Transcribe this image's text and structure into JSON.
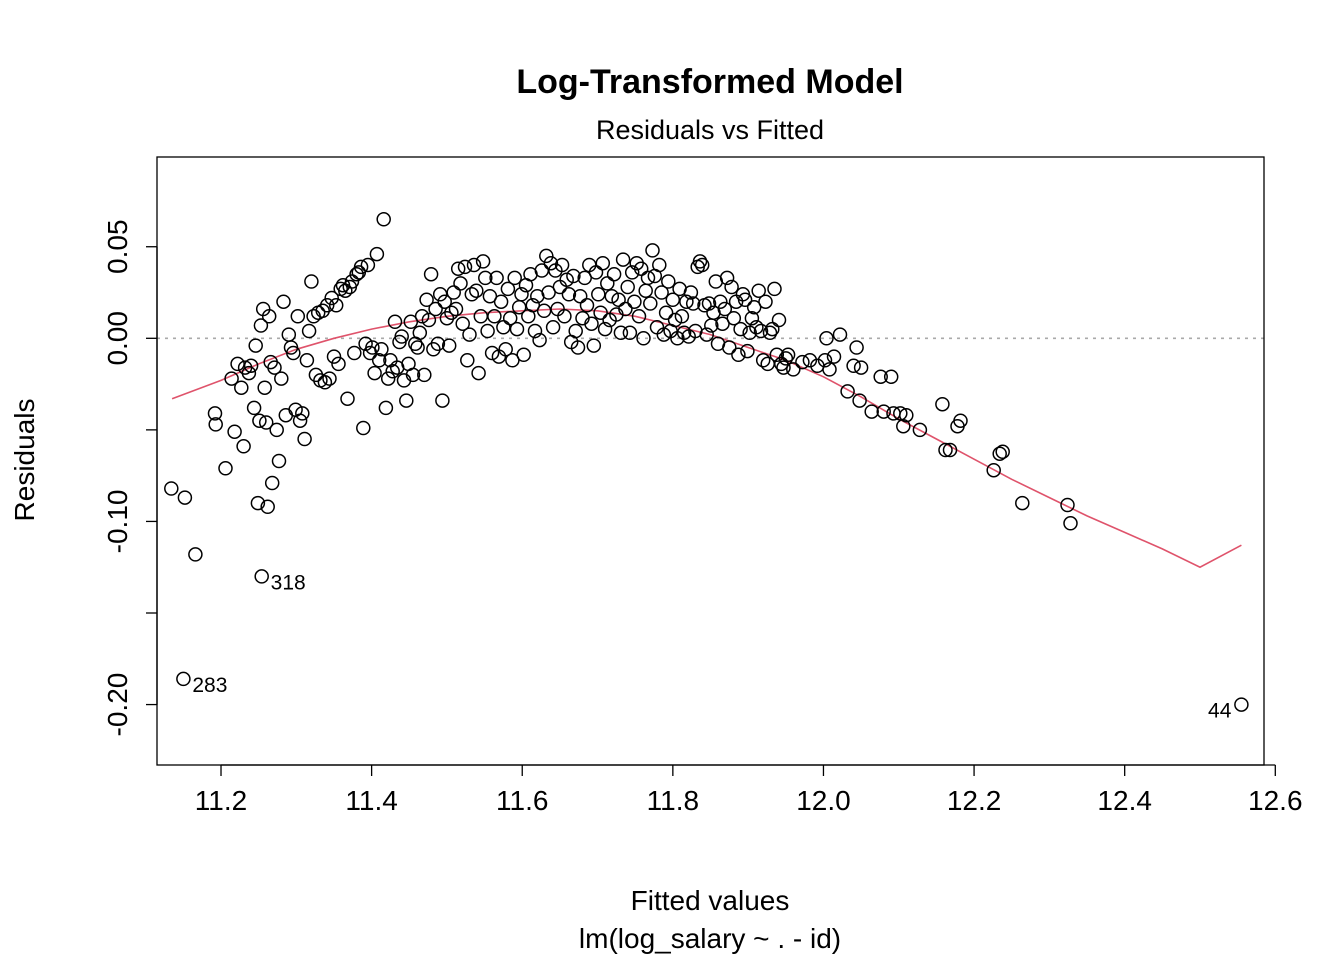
{
  "chart_data": {
    "type": "scatter",
    "title": "Log-Transformed Model",
    "subtitle": "Residuals vs Fitted",
    "xlabel": "Fitted values",
    "xlabel_sub": "lm(log_salary ~ . - id)",
    "ylabel": "Residuals",
    "xlim": [
      11.115,
      12.585
    ],
    "ylim": [
      -0.233,
      0.099
    ],
    "x_ticks": [
      11.2,
      11.4,
      11.6,
      11.8,
      12.0,
      12.2,
      12.4,
      12.6
    ],
    "x_tick_labels": [
      "11.2",
      "11.4",
      "11.6",
      "11.8",
      "12.0",
      "12.2",
      "12.4",
      "12.6"
    ],
    "y_ticks": [
      -0.2,
      -0.15,
      -0.1,
      -0.05,
      0.0,
      0.05
    ],
    "y_tick_labels": [
      "-0.20",
      "",
      "-0.10",
      "",
      "0.00",
      "0.05"
    ],
    "reference_line": {
      "y": 0.0,
      "style": "dotted",
      "color": "#aaaaaa"
    },
    "point_color": "#000000",
    "smooth_color": "#df536b",
    "labeled_points": [
      {
        "label": "318",
        "x": 11.254,
        "y": -0.13
      },
      {
        "label": "283",
        "x": 11.15,
        "y": -0.186
      },
      {
        "label": "44",
        "x": 12.555,
        "y": -0.2
      }
    ],
    "points": [
      [
        11.134,
        -0.082
      ],
      [
        11.152,
        -0.087
      ],
      [
        11.166,
        -0.118
      ],
      [
        11.192,
        -0.041
      ],
      [
        11.193,
        -0.047
      ],
      [
        11.206,
        -0.071
      ],
      [
        11.214,
        -0.022
      ],
      [
        11.218,
        -0.051
      ],
      [
        11.222,
        -0.014
      ],
      [
        11.227,
        -0.027
      ],
      [
        11.23,
        -0.059
      ],
      [
        11.232,
        -0.016
      ],
      [
        11.237,
        -0.019
      ],
      [
        11.24,
        -0.015
      ],
      [
        11.244,
        -0.038
      ],
      [
        11.246,
        -0.004
      ],
      [
        11.249,
        -0.09
      ],
      [
        11.251,
        -0.045
      ],
      [
        11.253,
        0.007
      ],
      [
        11.256,
        0.016
      ],
      [
        11.258,
        -0.027
      ],
      [
        11.26,
        -0.046
      ],
      [
        11.262,
        -0.092
      ],
      [
        11.264,
        0.012
      ],
      [
        11.266,
        -0.013
      ],
      [
        11.268,
        -0.079
      ],
      [
        11.271,
        -0.016
      ],
      [
        11.274,
        -0.05
      ],
      [
        11.277,
        -0.067
      ],
      [
        11.28,
        -0.022
      ],
      [
        11.283,
        0.02
      ],
      [
        11.286,
        -0.042
      ],
      [
        11.29,
        0.002
      ],
      [
        11.293,
        -0.005
      ],
      [
        11.296,
        -0.008
      ],
      [
        11.299,
        -0.039
      ],
      [
        11.302,
        0.012
      ],
      [
        11.305,
        -0.045
      ],
      [
        11.308,
        -0.041
      ],
      [
        11.311,
        -0.055
      ],
      [
        11.314,
        -0.012
      ],
      [
        11.317,
        0.004
      ],
      [
        11.32,
        0.031
      ],
      [
        11.323,
        0.012
      ],
      [
        11.326,
        -0.02
      ],
      [
        11.329,
        0.014
      ],
      [
        11.332,
        -0.023
      ],
      [
        11.335,
        0.015
      ],
      [
        11.338,
        -0.024
      ],
      [
        11.341,
        0.018
      ],
      [
        11.344,
        -0.022
      ],
      [
        11.347,
        0.022
      ],
      [
        11.35,
        -0.01
      ],
      [
        11.353,
        0.018
      ],
      [
        11.356,
        -0.014
      ],
      [
        11.359,
        0.027
      ],
      [
        11.362,
        0.029
      ],
      [
        11.365,
        0.026
      ],
      [
        11.368,
        -0.033
      ],
      [
        11.371,
        0.028
      ],
      [
        11.374,
        0.031
      ],
      [
        11.377,
        -0.008
      ],
      [
        11.38,
        0.035
      ],
      [
        11.383,
        0.036
      ],
      [
        11.386,
        0.039
      ],
      [
        11.389,
        -0.049
      ],
      [
        11.392,
        -0.003
      ],
      [
        11.395,
        0.04
      ],
      [
        11.398,
        -0.008
      ],
      [
        11.401,
        -0.005
      ],
      [
        11.404,
        -0.019
      ],
      [
        11.407,
        0.046
      ],
      [
        11.41,
        -0.012
      ],
      [
        11.413,
        -0.006
      ],
      [
        11.416,
        0.065
      ],
      [
        11.419,
        -0.038
      ],
      [
        11.422,
        -0.022
      ],
      [
        11.425,
        -0.012
      ],
      [
        11.428,
        -0.018
      ],
      [
        11.431,
        0.009
      ],
      [
        11.434,
        -0.016
      ],
      [
        11.437,
        -0.002
      ],
      [
        11.44,
        0.001
      ],
      [
        11.443,
        -0.023
      ],
      [
        11.446,
        -0.034
      ],
      [
        11.449,
        -0.014
      ],
      [
        11.452,
        0.009
      ],
      [
        11.455,
        -0.02
      ],
      [
        11.458,
        -0.003
      ],
      [
        11.461,
        -0.005
      ],
      [
        11.464,
        0.003
      ],
      [
        11.467,
        0.012
      ],
      [
        11.47,
        -0.02
      ],
      [
        11.473,
        0.021
      ],
      [
        11.476,
        0.01
      ],
      [
        11.479,
        0.035
      ],
      [
        11.482,
        -0.006
      ],
      [
        11.485,
        0.016
      ],
      [
        11.488,
        -0.003
      ],
      [
        11.491,
        0.024
      ],
      [
        11.494,
        -0.034
      ],
      [
        11.497,
        0.02
      ],
      [
        11.5,
        0.011
      ],
      [
        11.503,
        -0.004
      ],
      [
        11.506,
        0.014
      ],
      [
        11.509,
        0.025
      ],
      [
        11.512,
        0.016
      ],
      [
        11.515,
        0.038
      ],
      [
        11.518,
        0.03
      ],
      [
        11.521,
        0.008
      ],
      [
        11.524,
        0.039
      ],
      [
        11.527,
        -0.012
      ],
      [
        11.53,
        0.002
      ],
      [
        11.533,
        0.024
      ],
      [
        11.536,
        0.04
      ],
      [
        11.539,
        0.026
      ],
      [
        11.542,
        -0.019
      ],
      [
        11.545,
        0.012
      ],
      [
        11.548,
        0.042
      ],
      [
        11.551,
        0.033
      ],
      [
        11.554,
        0.004
      ],
      [
        11.557,
        0.023
      ],
      [
        11.56,
        -0.008
      ],
      [
        11.563,
        0.012
      ],
      [
        11.566,
        0.033
      ],
      [
        11.569,
        -0.01
      ],
      [
        11.572,
        0.02
      ],
      [
        11.575,
        0.006
      ],
      [
        11.578,
        -0.006
      ],
      [
        11.581,
        0.027
      ],
      [
        11.584,
        0.011
      ],
      [
        11.587,
        -0.012
      ],
      [
        11.59,
        0.033
      ],
      [
        11.593,
        0.005
      ],
      [
        11.596,
        0.017
      ],
      [
        11.599,
        0.024
      ],
      [
        11.602,
        -0.009
      ],
      [
        11.605,
        0.029
      ],
      [
        11.608,
        0.012
      ],
      [
        11.611,
        0.035
      ],
      [
        11.614,
        0.018
      ],
      [
        11.617,
        0.004
      ],
      [
        11.62,
        0.023
      ],
      [
        11.623,
        -0.001
      ],
      [
        11.626,
        0.037
      ],
      [
        11.629,
        0.015
      ],
      [
        11.632,
        0.045
      ],
      [
        11.635,
        0.025
      ],
      [
        11.638,
        0.041
      ],
      [
        11.641,
        0.006
      ],
      [
        11.644,
        0.037
      ],
      [
        11.647,
        0.016
      ],
      [
        11.65,
        0.028
      ],
      [
        11.653,
        0.04
      ],
      [
        11.656,
        0.012
      ],
      [
        11.659,
        0.032
      ],
      [
        11.662,
        0.024
      ],
      [
        11.665,
        -0.002
      ],
      [
        11.668,
        0.034
      ],
      [
        11.671,
        0.004
      ],
      [
        11.674,
        -0.005
      ],
      [
        11.677,
        0.023
      ],
      [
        11.68,
        0.011
      ],
      [
        11.683,
        0.033
      ],
      [
        11.686,
        0.018
      ],
      [
        11.689,
        0.04
      ],
      [
        11.692,
        0.008
      ],
      [
        11.695,
        -0.004
      ],
      [
        11.698,
        0.036
      ],
      [
        11.701,
        0.024
      ],
      [
        11.704,
        0.014
      ],
      [
        11.707,
        0.041
      ],
      [
        11.71,
        0.005
      ],
      [
        11.713,
        0.03
      ],
      [
        11.716,
        0.01
      ],
      [
        11.719,
        0.023
      ],
      [
        11.722,
        0.035
      ],
      [
        11.725,
        0.013
      ],
      [
        11.728,
        0.021
      ],
      [
        11.731,
        0.003
      ],
      [
        11.734,
        0.043
      ],
      [
        11.737,
        0.016
      ],
      [
        11.74,
        0.028
      ],
      [
        11.743,
        0.003
      ],
      [
        11.746,
        0.036
      ],
      [
        11.749,
        0.02
      ],
      [
        11.752,
        0.041
      ],
      [
        11.755,
        0.012
      ],
      [
        11.758,
        0.038
      ],
      [
        11.761,
        0.0
      ],
      [
        11.764,
        0.026
      ],
      [
        11.767,
        0.033
      ],
      [
        11.77,
        0.019
      ],
      [
        11.773,
        0.048
      ],
      [
        11.776,
        0.034
      ],
      [
        11.779,
        0.006
      ],
      [
        11.782,
        0.04
      ],
      [
        11.785,
        0.025
      ],
      [
        11.788,
        0.002
      ],
      [
        11.791,
        0.014
      ],
      [
        11.794,
        0.031
      ],
      [
        11.797,
        0.004
      ],
      [
        11.8,
        0.021
      ],
      [
        11.803,
        0.01
      ],
      [
        11.806,
        0.0
      ],
      [
        11.809,
        0.027
      ],
      [
        11.812,
        0.012
      ],
      [
        11.815,
        0.003
      ],
      [
        11.818,
        0.02
      ],
      [
        11.821,
        0.001
      ],
      [
        11.824,
        0.025
      ],
      [
        11.827,
        0.019
      ],
      [
        11.83,
        0.004
      ],
      [
        11.833,
        0.039
      ],
      [
        11.836,
        0.042
      ],
      [
        11.839,
        0.04
      ],
      [
        11.842,
        0.018
      ],
      [
        11.845,
        0.002
      ],
      [
        11.848,
        0.019
      ],
      [
        11.851,
        0.007
      ],
      [
        11.854,
        0.014
      ],
      [
        11.857,
        0.031
      ],
      [
        11.86,
        -0.003
      ],
      [
        11.863,
        0.02
      ],
      [
        11.866,
        0.008
      ],
      [
        11.869,
        0.016
      ],
      [
        11.872,
        0.033
      ],
      [
        11.875,
        -0.005
      ],
      [
        11.878,
        0.028
      ],
      [
        11.881,
        0.011
      ],
      [
        11.884,
        0.02
      ],
      [
        11.887,
        -0.009
      ],
      [
        11.89,
        0.005
      ],
      [
        11.893,
        0.024
      ],
      [
        11.896,
        0.021
      ],
      [
        11.899,
        -0.007
      ],
      [
        11.902,
        0.003
      ],
      [
        11.905,
        0.011
      ],
      [
        11.908,
        0.017
      ],
      [
        11.911,
        0.006
      ],
      [
        11.914,
        0.026
      ],
      [
        11.917,
        0.004
      ],
      [
        11.92,
        -0.012
      ],
      [
        11.923,
        0.02
      ],
      [
        11.926,
        -0.014
      ],
      [
        11.929,
        0.003
      ],
      [
        11.932,
        0.005
      ],
      [
        11.935,
        0.027
      ],
      [
        11.938,
        -0.009
      ],
      [
        11.941,
        0.01
      ],
      [
        11.944,
        -0.014
      ],
      [
        11.947,
        -0.016
      ],
      [
        11.95,
        -0.011
      ],
      [
        11.953,
        -0.009
      ],
      [
        11.96,
        -0.017
      ],
      [
        11.972,
        -0.013
      ],
      [
        11.982,
        -0.012
      ],
      [
        11.992,
        -0.015
      ],
      [
        12.002,
        -0.012
      ],
      [
        12.004,
        0.0
      ],
      [
        12.008,
        -0.017
      ],
      [
        12.014,
        -0.01
      ],
      [
        12.022,
        0.002
      ],
      [
        12.032,
        -0.029
      ],
      [
        12.04,
        -0.015
      ],
      [
        12.044,
        -0.005
      ],
      [
        12.048,
        -0.034
      ],
      [
        12.05,
        -0.016
      ],
      [
        12.064,
        -0.04
      ],
      [
        12.076,
        -0.021
      ],
      [
        12.08,
        -0.04
      ],
      [
        12.09,
        -0.021
      ],
      [
        12.093,
        -0.041
      ],
      [
        12.102,
        -0.041
      ],
      [
        12.106,
        -0.048
      ],
      [
        12.11,
        -0.042
      ],
      [
        12.128,
        -0.05
      ],
      [
        12.158,
        -0.036
      ],
      [
        12.162,
        -0.061
      ],
      [
        12.168,
        -0.061
      ],
      [
        12.178,
        -0.048
      ],
      [
        12.182,
        -0.045
      ],
      [
        12.226,
        -0.072
      ],
      [
        12.234,
        -0.063
      ],
      [
        12.238,
        -0.062
      ],
      [
        12.264,
        -0.09
      ],
      [
        12.324,
        -0.091
      ],
      [
        12.328,
        -0.101
      ],
      [
        11.254,
        -0.13
      ],
      [
        11.15,
        -0.186
      ],
      [
        12.555,
        -0.2
      ]
    ],
    "smooth": [
      [
        11.135,
        -0.033
      ],
      [
        11.2,
        -0.023
      ],
      [
        11.25,
        -0.014
      ],
      [
        11.3,
        -0.006
      ],
      [
        11.35,
        0.0
      ],
      [
        11.4,
        0.005
      ],
      [
        11.45,
        0.009
      ],
      [
        11.5,
        0.012
      ],
      [
        11.55,
        0.014
      ],
      [
        11.6,
        0.015
      ],
      [
        11.65,
        0.016
      ],
      [
        11.7,
        0.015
      ],
      [
        11.75,
        0.012
      ],
      [
        11.8,
        0.007
      ],
      [
        11.85,
        0.002
      ],
      [
        11.9,
        -0.005
      ],
      [
        11.95,
        -0.012
      ],
      [
        12.0,
        -0.021
      ],
      [
        12.05,
        -0.032
      ],
      [
        12.1,
        -0.044
      ],
      [
        12.15,
        -0.055
      ],
      [
        12.2,
        -0.066
      ],
      [
        12.25,
        -0.077
      ],
      [
        12.3,
        -0.087
      ],
      [
        12.35,
        -0.097
      ],
      [
        12.4,
        -0.106
      ],
      [
        12.45,
        -0.115
      ],
      [
        12.5,
        -0.125
      ],
      [
        12.555,
        -0.113
      ]
    ]
  }
}
